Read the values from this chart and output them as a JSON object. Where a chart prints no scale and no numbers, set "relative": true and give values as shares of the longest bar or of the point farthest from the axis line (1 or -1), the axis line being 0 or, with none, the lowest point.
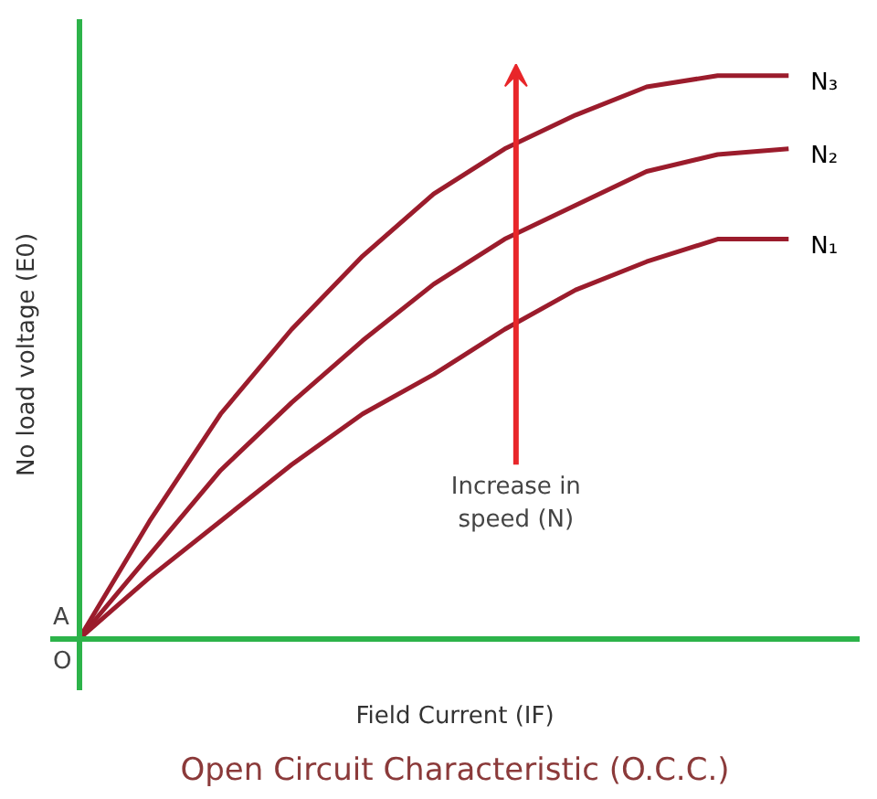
{
  "chart_data": {
    "type": "line",
    "relative": true,
    "title": "Open Circuit Characteristic (O.C.C.)",
    "xlabel": "Field Current (IF)",
    "ylabel": "No load voltage (E0)",
    "categories": [
      null,
      null,
      null,
      null,
      null,
      null,
      null,
      null,
      null,
      null,
      null
    ],
    "series": [
      {
        "name": "N₁",
        "color": "#9b1c2c",
        "values": [
          0,
          0.11,
          0.21,
          0.31,
          0.4,
          0.47,
          0.55,
          0.62,
          0.67,
          0.71,
          0.71
        ]
      },
      {
        "name": "N₂",
        "color": "#9b1c2c",
        "values": [
          0,
          0.15,
          0.3,
          0.42,
          0.53,
          0.63,
          0.71,
          0.77,
          0.83,
          0.86,
          0.87
        ]
      },
      {
        "name": "N₃",
        "color": "#9b1c2c",
        "values": [
          0,
          0.21,
          0.4,
          0.55,
          0.68,
          0.79,
          0.87,
          0.93,
          0.98,
          1.0,
          1.0
        ]
      }
    ],
    "annotations": [
      "Increase in speed (N)",
      "A",
      "O"
    ],
    "legend": false,
    "marker": "none",
    "line_style": "solid"
  }
}
